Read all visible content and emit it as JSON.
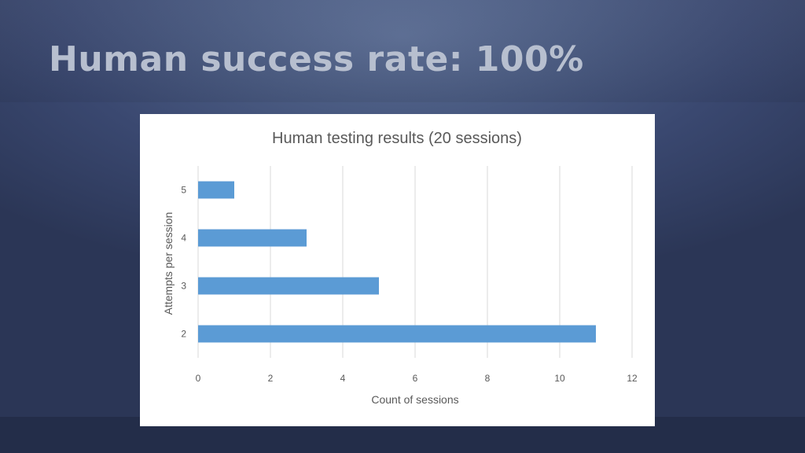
{
  "slide": {
    "title": "Human success rate: 100%"
  },
  "colors": {
    "bar": "#5b9bd5",
    "gridline": "#d9d9d9",
    "text": "#595959"
  },
  "chart_data": {
    "type": "bar",
    "orientation": "horizontal",
    "title": "Human testing results (20 sessions)",
    "xlabel": "Count of sessions",
    "ylabel": "Attempts  per session",
    "categories": [
      "2",
      "3",
      "4",
      "5"
    ],
    "values": [
      11,
      5,
      3,
      1
    ],
    "xlim": [
      0,
      12
    ],
    "xticks": [
      0,
      2,
      4,
      6,
      8,
      10,
      12
    ],
    "grid": true,
    "legend": "none"
  }
}
